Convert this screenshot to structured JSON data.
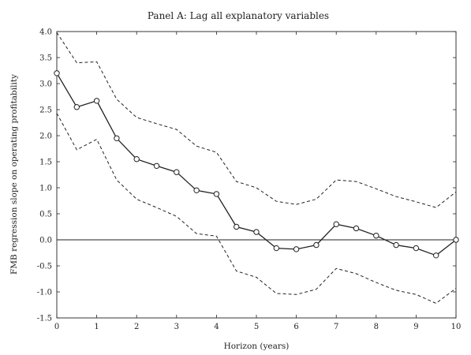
{
  "chart_data": {
    "type": "line",
    "title": "Panel A: Lag all explanatory variables",
    "xlabel": "Horizon (years)",
    "ylabel": "FMB regression slope on operating profitability",
    "xlim": [
      0,
      10
    ],
    "ylim": [
      -1.5,
      4.0
    ],
    "x_ticks": [
      "0",
      "1",
      "2",
      "3",
      "4",
      "5",
      "6",
      "7",
      "8",
      "9",
      "10"
    ],
    "y_ticks": [
      "4.0",
      "3.5",
      "3.0",
      "2.5",
      "2.0",
      "1.5",
      "1.0",
      "0.5",
      "0.0",
      "-0.5",
      "-1.0",
      "-1.5"
    ],
    "zero_line": true,
    "grid": false,
    "x": [
      0,
      0.5,
      1,
      1.5,
      2,
      2.5,
      3,
      3.5,
      4,
      4.5,
      5,
      5.5,
      6,
      6.5,
      7,
      7.5,
      8,
      8.5,
      9,
      9.5,
      10
    ],
    "series": [
      {
        "role": "estimate",
        "style": "solid-circle-markers",
        "values": [
          3.2,
          2.55,
          2.67,
          1.95,
          1.55,
          1.42,
          1.3,
          0.95,
          0.88,
          0.25,
          0.15,
          -0.16,
          -0.18,
          -0.1,
          0.3,
          0.22,
          0.08,
          -0.1,
          -0.16,
          -0.3,
          0.0
        ]
      },
      {
        "role": "upper-band",
        "style": "dashed",
        "values": [
          3.98,
          3.4,
          3.42,
          2.7,
          2.35,
          2.23,
          2.12,
          1.8,
          1.68,
          1.12,
          1.0,
          0.74,
          0.68,
          0.78,
          1.15,
          1.12,
          0.98,
          0.83,
          0.73,
          0.62,
          0.92
        ]
      },
      {
        "role": "lower-band",
        "style": "dashed",
        "values": [
          2.43,
          1.73,
          1.93,
          1.15,
          0.78,
          0.62,
          0.45,
          0.12,
          0.07,
          -0.6,
          -0.72,
          -1.03,
          -1.05,
          -0.95,
          -0.55,
          -0.65,
          -0.82,
          -0.97,
          -1.05,
          -1.22,
          -0.93
        ]
      }
    ]
  }
}
